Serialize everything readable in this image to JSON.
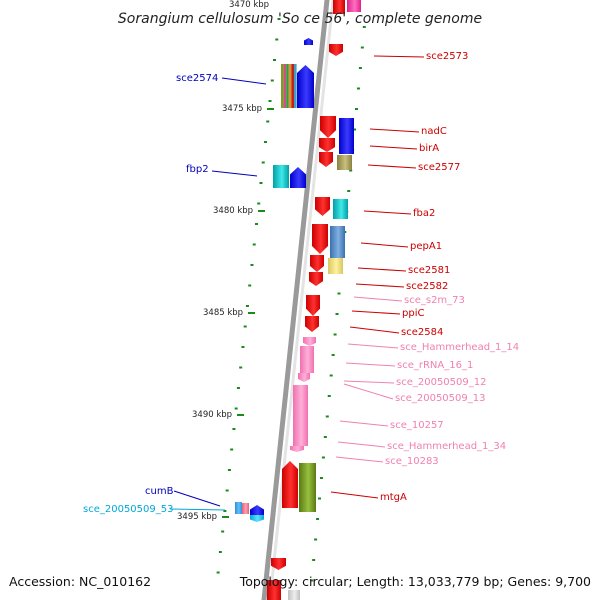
{
  "header": {
    "title": "Sorangium cellulosum 'So ce 56', complete genome",
    "top_kbp_partial": "3470 kbp"
  },
  "footer": {
    "accession": "Accession: NC_010162",
    "topology": "Topology: circular; Length: 13,033,779 bp; Genes: 9,700"
  },
  "colors": {
    "backbone": "#9a9a9a",
    "forward_label": "#0000bb",
    "reverse_label": "#cc0000",
    "rna_label": "#f080b0",
    "ncrna_label": "#00a8d8",
    "tick": "#1a8a1a"
  },
  "ruler": [
    "3475 kbp",
    "3480 kbp",
    "3485 kbp",
    "3490 kbp",
    "3495 kbp"
  ],
  "labels": [
    {
      "text": "sce2574",
      "side": "left",
      "kind": "forward"
    },
    {
      "text": "fbp2",
      "side": "left",
      "kind": "forward"
    },
    {
      "text": "cumB",
      "side": "left",
      "kind": "forward"
    },
    {
      "text": "sce_20050509_53",
      "side": "left",
      "kind": "ncrna"
    },
    {
      "text": "sce2573",
      "side": "right",
      "kind": "reverse"
    },
    {
      "text": "nadC",
      "side": "right",
      "kind": "reverse"
    },
    {
      "text": "birA",
      "side": "right",
      "kind": "reverse"
    },
    {
      "text": "sce2577",
      "side": "right",
      "kind": "reverse"
    },
    {
      "text": "fba2",
      "side": "right",
      "kind": "reverse"
    },
    {
      "text": "pepA1",
      "side": "right",
      "kind": "reverse"
    },
    {
      "text": "sce2581",
      "side": "right",
      "kind": "reverse"
    },
    {
      "text": "sce2582",
      "side": "right",
      "kind": "reverse"
    },
    {
      "text": "sce_s2m_73",
      "side": "right",
      "kind": "rna"
    },
    {
      "text": "ppiC",
      "side": "right",
      "kind": "reverse"
    },
    {
      "text": "sce2584",
      "side": "right",
      "kind": "reverse"
    },
    {
      "text": "sce_Hammerhead_1_14",
      "side": "right",
      "kind": "rna"
    },
    {
      "text": "sce_rRNA_16_1",
      "side": "right",
      "kind": "rna"
    },
    {
      "text": "sce_20050509_12",
      "side": "right",
      "kind": "rna"
    },
    {
      "text": "sce_20050509_13",
      "side": "right",
      "kind": "rna"
    },
    {
      "text": "sce_10257",
      "side": "right",
      "kind": "rna"
    },
    {
      "text": "sce_Hammerhead_1_34",
      "side": "right",
      "kind": "rna"
    },
    {
      "text": "sce_10283",
      "side": "right",
      "kind": "rna"
    },
    {
      "text": "mtgA",
      "side": "right",
      "kind": "reverse"
    }
  ]
}
